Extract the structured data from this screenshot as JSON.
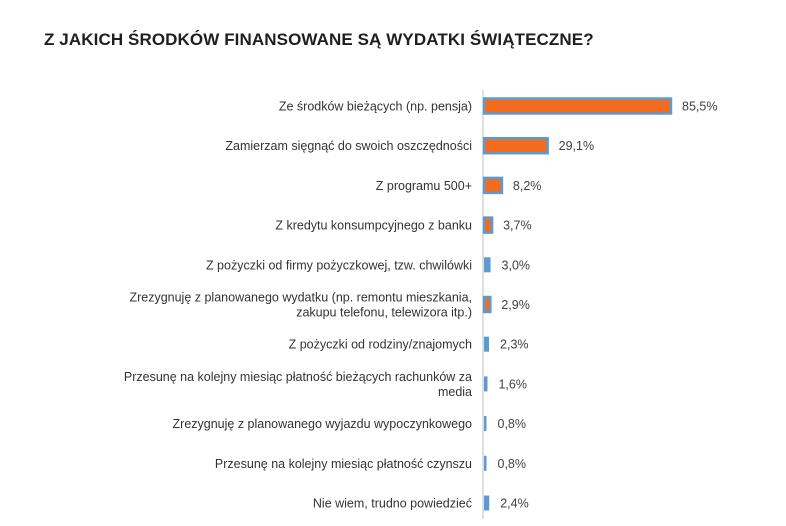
{
  "chart_data": {
    "type": "bar",
    "orientation": "horizontal",
    "title": "Z JAKICH ŚRODKÓW FINANSOWANE SĄ WYDATKI ŚWIĄTECZNE?",
    "xlabel": "",
    "ylabel": "",
    "xlim": [
      0,
      85.5
    ],
    "grid": false,
    "legend": "none",
    "colors": {
      "highlight_fill": "#f26c1f",
      "highlight_border": "#5b9bd5",
      "base_fill": "#5b9bd5",
      "axis": "#bfbfbf"
    },
    "categories": [
      [
        "Ze środków bieżących (np. pensja)"
      ],
      [
        "Zamierzam sięgnąć do swoich oszczędności"
      ],
      [
        "Z programu 500+"
      ],
      [
        "Z kredytu konsumpcyjnego z banku"
      ],
      [
        "Z pożyczki od firmy pożyczkowej, tzw. chwilówki"
      ],
      [
        "Zrezygnuję z planowanego wydatku (np. remontu mieszkania,",
        "zakupu telefonu, telewizora itp.)"
      ],
      [
        "Z pożyczki od rodziny/znajomych"
      ],
      [
        "Przesunę na kolejny miesiąc płatność bieżących rachunków za",
        "media"
      ],
      [
        "Zrezygnuję z planowanego wyjazdu wypoczynkowego"
      ],
      [
        "Przesunę na kolejny miesiąc płatność czynszu"
      ],
      [
        "Nie wiem, trudno powiedzieć"
      ]
    ],
    "values": [
      85.5,
      29.1,
      8.2,
      3.7,
      3.0,
      2.9,
      2.3,
      1.6,
      0.8,
      0.8,
      2.4
    ],
    "value_labels": [
      "85,5%",
      "29,1%",
      "8,2%",
      "3,7%",
      "3,0%",
      "2,9%",
      "2,3%",
      "1,6%",
      "0,8%",
      "0,8%",
      "2,4%"
    ],
    "highlighted": [
      true,
      true,
      true,
      true,
      false,
      true,
      false,
      false,
      false,
      false,
      false
    ]
  }
}
